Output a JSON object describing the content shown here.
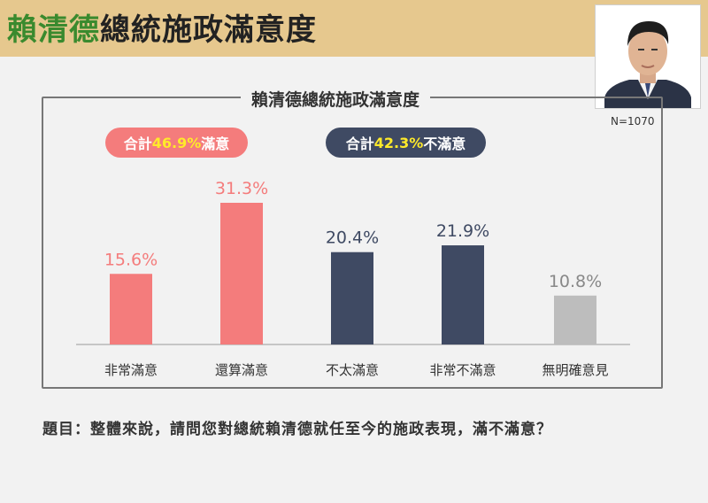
{
  "header": {
    "title_highlight": "賴清德",
    "title_rest": "總統施政滿意度"
  },
  "chart_subtitle": "賴清德總統施政滿意度",
  "sample_size": "N=1070",
  "summary": {
    "positive": {
      "prefix": "合計",
      "value": "46.9%",
      "suffix": "滿意"
    },
    "negative": {
      "prefix": "合計",
      "value": "42.3%",
      "suffix": "不滿意"
    }
  },
  "colors": {
    "positive": "#f47c7c",
    "negative": "#3f4a63",
    "neutral": "#bdbdbd",
    "header_bg": "#e6c88e",
    "title_highlight": "#3a8a2e",
    "summary_value": "#ffea2a"
  },
  "chart_data": {
    "type": "bar",
    "title": "賴清德總統施政滿意度",
    "categories": [
      "非常滿意",
      "還算滿意",
      "不太滿意",
      "非常不滿意",
      "無明確意見"
    ],
    "values": [
      15.6,
      31.3,
      20.4,
      21.9,
      10.8
    ],
    "value_labels": [
      "15.6%",
      "31.3%",
      "20.4%",
      "21.9%",
      "10.8%"
    ],
    "bar_colors": [
      "#f47c7c",
      "#f47c7c",
      "#3f4a63",
      "#3f4a63",
      "#bdbdbd"
    ],
    "label_colors": [
      "#f47c7c",
      "#f47c7c",
      "#3f4a63",
      "#3f4a63",
      "#888888"
    ],
    "xlabel": "",
    "ylabel": "",
    "ylim": [
      0,
      35
    ],
    "grid": false
  },
  "question": "題目：整體來說，請問您對總統賴清德就任至今的施政表現，滿不滿意？"
}
